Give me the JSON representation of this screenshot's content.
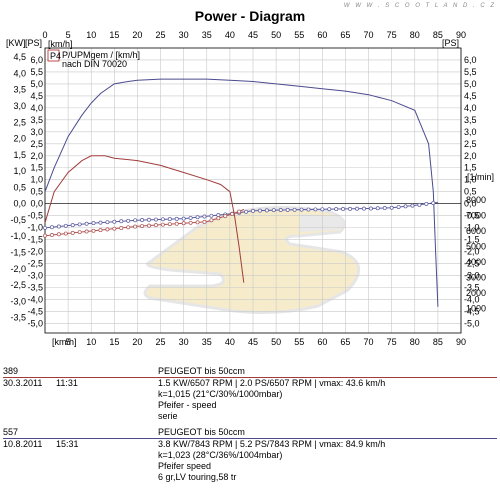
{
  "header": {
    "title": "Power - Diagram",
    "site": "W W W . S C O O T L A N D . C Z"
  },
  "legend": {
    "badge": "P4",
    "line1": "P/UPMgem / [km/h]",
    "line2": "nach DIN 70020"
  },
  "colors": {
    "power_blue": "#4b4b8f",
    "power_red": "#a03c3c",
    "rpm_blue": "#5a5aa0",
    "rpm_red": "#b05050",
    "grid": "#c8c8c8",
    "badge": "#b22222"
  },
  "chart_data": {
    "type": "line",
    "title": "Power - Diagram",
    "xlabel": "[km/h]",
    "ylabel_left_kw": "[KW]",
    "ylabel_left_ps": "[PS]",
    "ylabel_right_ps": "[PS]",
    "ylabel_right_rpm": "[1/min]",
    "xlim": [
      0,
      90
    ],
    "x_ticks": [
      0,
      5,
      10,
      15,
      20,
      25,
      30,
      35,
      40,
      45,
      50,
      55,
      60,
      65,
      70,
      75,
      80,
      85,
      90
    ],
    "x_top_labels": [
      "0",
      "5",
      "10",
      "15",
      "20",
      "25",
      "30",
      "35",
      "40",
      "45",
      "50",
      "55",
      "60",
      "65",
      "70",
      "75",
      "80",
      "85",
      "90"
    ],
    "x_bottom_labels": [
      "0",
      "5",
      "10",
      "15",
      "20",
      "25",
      "30",
      "35",
      "40",
      "45",
      "50",
      "55",
      "60",
      "65",
      "70",
      "75",
      "80",
      "85",
      "90"
    ],
    "ps_ticks": [
      "6,0",
      "5,5",
      "5,0",
      "4,5",
      "4,0",
      "3,5",
      "3,0",
      "2,5",
      "2,0",
      "1,5",
      "1,0",
      "0,5",
      "0,0",
      "-0,5",
      "-1,0",
      "-1,5",
      "-2,0",
      "-2,5",
      "-3,0",
      "-3,5",
      "-4,0",
      "-4,5",
      "-5,0"
    ],
    "ps_right_ticks": [
      "6,0",
      "5,5",
      "5,0",
      "4,5",
      "4,0",
      "3,5",
      "3,0",
      "2,5",
      "2,0",
      "1,5",
      "1,0",
      "0,5",
      "0,0",
      "-0,5",
      "-1,0",
      "-1,5",
      "-2,0",
      "-2,5",
      "-3,0",
      "-3,5",
      "-4,0",
      "-4,5",
      "-5,0"
    ],
    "kw_ticks": [
      "4,5",
      "4,0",
      "3,5",
      "3,0",
      "2,5",
      "2,0",
      "1,5",
      "1,0",
      "0,5",
      "0,0",
      "-0,5",
      "-1,0",
      "-1,5",
      "-2,0",
      "-2,5",
      "-3,0",
      "-3,5"
    ],
    "rpm_ticks": [
      "8000",
      "7000",
      "6000",
      "5000",
      "4000",
      "3000",
      "2000",
      "1000"
    ],
    "series": [
      {
        "id": "power_557",
        "unit": "PS",
        "x": [
          0,
          2,
          5,
          8,
          10,
          12,
          15,
          18,
          20,
          25,
          30,
          35,
          40,
          45,
          50,
          55,
          60,
          65,
          70,
          75,
          80,
          83,
          84,
          84.5,
          85
        ],
        "y": [
          0.5,
          1.5,
          2.8,
          3.7,
          4.2,
          4.6,
          5.0,
          5.1,
          5.15,
          5.2,
          5.2,
          5.2,
          5.15,
          5.1,
          5.0,
          4.9,
          4.8,
          4.7,
          4.55,
          4.3,
          3.9,
          2.5,
          0.5,
          -2.0,
          -4.3
        ]
      },
      {
        "id": "power_389",
        "unit": "PS",
        "x": [
          0,
          2,
          5,
          8,
          10,
          12,
          13,
          15,
          20,
          25,
          30,
          35,
          38,
          40,
          41,
          42,
          43
        ],
        "y": [
          -0.8,
          0.5,
          1.3,
          1.8,
          2.0,
          2.0,
          2.0,
          1.9,
          1.8,
          1.6,
          1.3,
          1.0,
          0.8,
          0.5,
          -0.5,
          -1.8,
          -3.3
        ]
      },
      {
        "id": "speed_557",
        "unit": "1/min",
        "x": [
          0,
          10,
          20,
          30,
          40,
          45,
          50,
          60,
          70,
          75,
          80,
          85
        ],
        "y": [
          6200,
          6500,
          6700,
          6800,
          7100,
          7300,
          7350,
          7400,
          7450,
          7500,
          7650,
          7843
        ]
      },
      {
        "id": "speed_389",
        "unit": "1/min",
        "x": [
          0,
          10,
          20,
          30,
          35,
          40,
          42,
          43
        ],
        "y": [
          5700,
          6000,
          6300,
          6500,
          6600,
          7050,
          7250,
          7400
        ]
      }
    ]
  },
  "runs": [
    {
      "id": "389",
      "date": "30.3.2011",
      "time": "11:31",
      "vehicle": "PEUGEOT bis      50ccm",
      "result": "1.5 KW/6507 RPM  |  2.0 PS/6507 RPM  |  vmax: 43.6 km/h",
      "correction": "k=1,015 (21°C/30%/1000mbar)",
      "notes": [
        "Pfeifer - speed",
        "serie"
      ]
    },
    {
      "id": "557",
      "date": "10.8.2011",
      "time": "15:31",
      "vehicle": "PEUGEOT bis      50ccm",
      "result": "3.8 KW/7843 RPM  |  5.2 PS/7843 RPM  |  vmax: 84.9 km/h",
      "correction": "k=1,023 (28°C/36%/1004mbar)",
      "notes": [
        "Pfeifer speed",
        "6 gr,LV touring,58 tr"
      ]
    }
  ]
}
